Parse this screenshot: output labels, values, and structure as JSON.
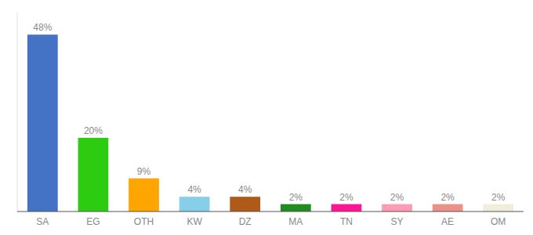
{
  "chart_data": {
    "type": "bar",
    "categories": [
      "SA",
      "EG",
      "OTH",
      "KW",
      "DZ",
      "MA",
      "TN",
      "SY",
      "AE",
      "OM"
    ],
    "values": [
      48,
      20,
      9,
      4,
      4,
      2,
      2,
      2,
      2,
      2
    ],
    "value_labels": [
      "48%",
      "20%",
      "9%",
      "4%",
      "4%",
      "2%",
      "2%",
      "2%",
      "2%",
      "2%"
    ],
    "colors": [
      "#4472C4",
      "#2ECC11",
      "#FFA500",
      "#87CEEB",
      "#B05A1A",
      "#228B22",
      "#FF1493",
      "#FF9BB5",
      "#E8928A",
      "#F0EDD8"
    ],
    "ylim": [
      0,
      54
    ],
    "data_labels": true,
    "tick_labels": "x",
    "grid": false
  }
}
